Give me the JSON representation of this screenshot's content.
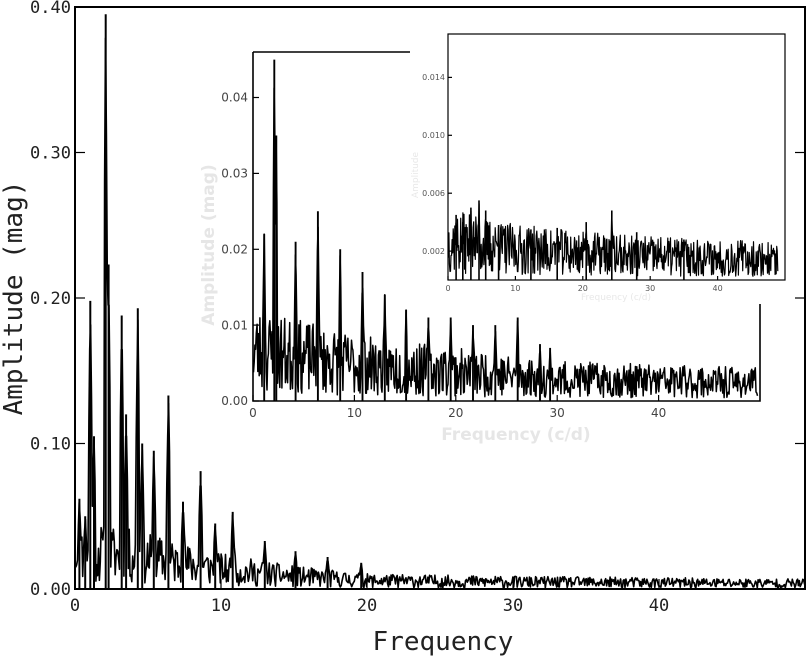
{
  "chart_data": [
    {
      "type": "line",
      "xlabel": "Frequency",
      "ylabel": "Amplitude (mag)",
      "xlim": [
        0,
        50
      ],
      "ylim": [
        0,
        0.4
      ],
      "x_ticks": [
        0,
        10,
        20,
        30,
        40
      ],
      "y_ticks": [
        0.0,
        0.1,
        0.2,
        0.3,
        0.4
      ],
      "x_tick_labels": [
        "0",
        "10",
        "20",
        "30",
        "40"
      ],
      "y_tick_labels": [
        "0.00",
        "0.10",
        "0.20",
        "0.30",
        "0.40"
      ],
      "color": "#000000",
      "noise_floor": [
        [
          0,
          0.028
        ],
        [
          5,
          0.022
        ],
        [
          10,
          0.014
        ],
        [
          15,
          0.009
        ],
        [
          20,
          0.006
        ],
        [
          30,
          0.005
        ],
        [
          50,
          0.004
        ]
      ],
      "peaks": [
        {
          "x": 0.3,
          "y": 0.062
        },
        {
          "x": 0.7,
          "y": 0.05
        },
        {
          "x": 1.05,
          "y": 0.198
        },
        {
          "x": 1.3,
          "y": 0.105
        },
        {
          "x": 2.1,
          "y": 0.395
        },
        {
          "x": 2.3,
          "y": 0.223
        },
        {
          "x": 3.2,
          "y": 0.188
        },
        {
          "x": 3.5,
          "y": 0.12
        },
        {
          "x": 4.3,
          "y": 0.193
        },
        {
          "x": 4.6,
          "y": 0.1
        },
        {
          "x": 5.4,
          "y": 0.095
        },
        {
          "x": 6.4,
          "y": 0.133
        },
        {
          "x": 7.4,
          "y": 0.06
        },
        {
          "x": 8.6,
          "y": 0.081
        },
        {
          "x": 9.6,
          "y": 0.045
        },
        {
          "x": 10.8,
          "y": 0.053
        },
        {
          "x": 13,
          "y": 0.033
        },
        {
          "x": 15.1,
          "y": 0.026
        },
        {
          "x": 17.3,
          "y": 0.022
        },
        {
          "x": 19.6,
          "y": 0.018
        }
      ]
    },
    {
      "type": "line",
      "xlabel": "Frequency (c/d)",
      "ylabel": "Amplitude (mag)",
      "xlim": [
        0,
        50
      ],
      "ylim": [
        0,
        0.046
      ],
      "x_ticks": [
        0,
        10,
        20,
        30,
        40
      ],
      "y_ticks": [
        0.0,
        0.01,
        0.02,
        0.03,
        0.04
      ],
      "x_tick_labels": [
        "0",
        "10",
        "20",
        "30",
        "40"
      ],
      "y_tick_labels": [
        "0.00",
        "0.01",
        "0.02",
        "0.03",
        "0.04"
      ],
      "color": "#000000",
      "noise_floor": [
        [
          0,
          0.007
        ],
        [
          10,
          0.005
        ],
        [
          20,
          0.004
        ],
        [
          30,
          0.003
        ],
        [
          50,
          0.0025
        ]
      ],
      "peaks": [
        {
          "x": 1.1,
          "y": 0.022
        },
        {
          "x": 2.1,
          "y": 0.045
        },
        {
          "x": 2.3,
          "y": 0.035
        },
        {
          "x": 4.2,
          "y": 0.021
        },
        {
          "x": 6.4,
          "y": 0.025
        },
        {
          "x": 8.6,
          "y": 0.02
        },
        {
          "x": 10.8,
          "y": 0.017
        },
        {
          "x": 13,
          "y": 0.014
        },
        {
          "x": 15.1,
          "y": 0.012
        },
        {
          "x": 17.3,
          "y": 0.011
        },
        {
          "x": 19.5,
          "y": 0.011
        },
        {
          "x": 21.7,
          "y": 0.01
        },
        {
          "x": 23.9,
          "y": 0.01
        },
        {
          "x": 26.1,
          "y": 0.011
        },
        {
          "x": 28.3,
          "y": 0.0075
        },
        {
          "x": 29.3,
          "y": 0.007
        }
      ]
    },
    {
      "type": "line",
      "xlabel": "Frequency (c/d)",
      "ylabel": "Amplitude",
      "xlim": [
        0,
        50
      ],
      "ylim": [
        0,
        0.017
      ],
      "x_ticks": [
        0,
        10,
        20,
        30,
        40
      ],
      "y_ticks": [
        0.002,
        0.006,
        0.01,
        0.014
      ],
      "x_tick_labels": [
        "0",
        "10",
        "20",
        "30",
        "40"
      ],
      "y_tick_labels": [
        "0.002",
        "0.006",
        "0.010",
        "0.014"
      ],
      "color": "#000000",
      "noise_floor": [
        [
          0,
          0.0028
        ],
        [
          10,
          0.0022
        ],
        [
          25,
          0.0018
        ],
        [
          50,
          0.0015
        ]
      ],
      "peaks": [
        {
          "x": 1.2,
          "y": 0.0045
        },
        {
          "x": 2.2,
          "y": 0.004
        },
        {
          "x": 3.4,
          "y": 0.005
        },
        {
          "x": 4.6,
          "y": 0.0055
        },
        {
          "x": 5.6,
          "y": 0.0048
        },
        {
          "x": 7.5,
          "y": 0.0038
        },
        {
          "x": 12.3,
          "y": 0.0035
        },
        {
          "x": 16.2,
          "y": 0.0036
        },
        {
          "x": 20.5,
          "y": 0.004
        },
        {
          "x": 24.3,
          "y": 0.0048
        },
        {
          "x": 28,
          "y": 0.0033
        },
        {
          "x": 35,
          "y": 0.0028
        }
      ]
    }
  ]
}
